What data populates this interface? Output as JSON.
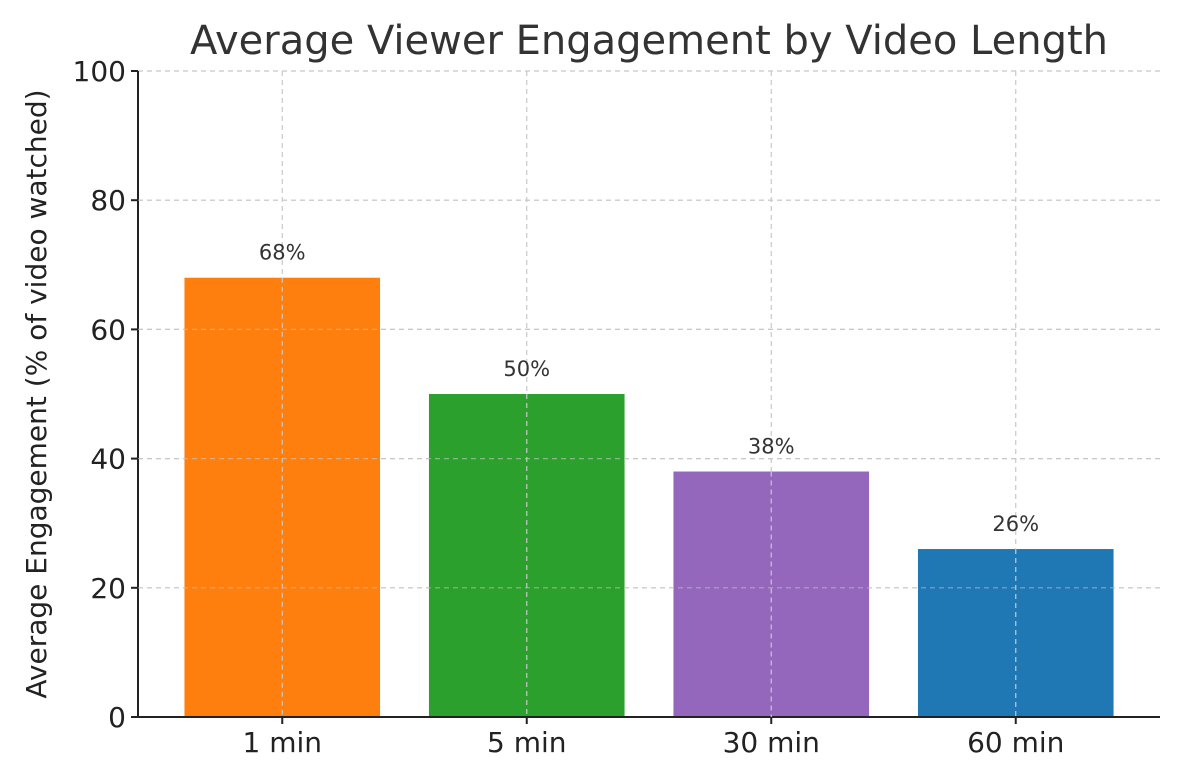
{
  "chart_data": {
    "type": "bar",
    "title": "Average Viewer Engagement by Video Length",
    "xlabel": "",
    "ylabel": "Average Engagement (% of video watched)",
    "categories": [
      "1 min",
      "5 min",
      "30 min",
      "60 min"
    ],
    "values": [
      68,
      50,
      38,
      26
    ],
    "data_labels": [
      "68%",
      "50%",
      "38%",
      "26%"
    ],
    "colors": [
      "#ff7f0e",
      "#2ca02c",
      "#9467bd",
      "#1f77b4"
    ],
    "ylim": [
      0,
      100
    ],
    "yticks": [
      0,
      20,
      40,
      60,
      80,
      100
    ],
    "grid": true,
    "legend": "none"
  }
}
